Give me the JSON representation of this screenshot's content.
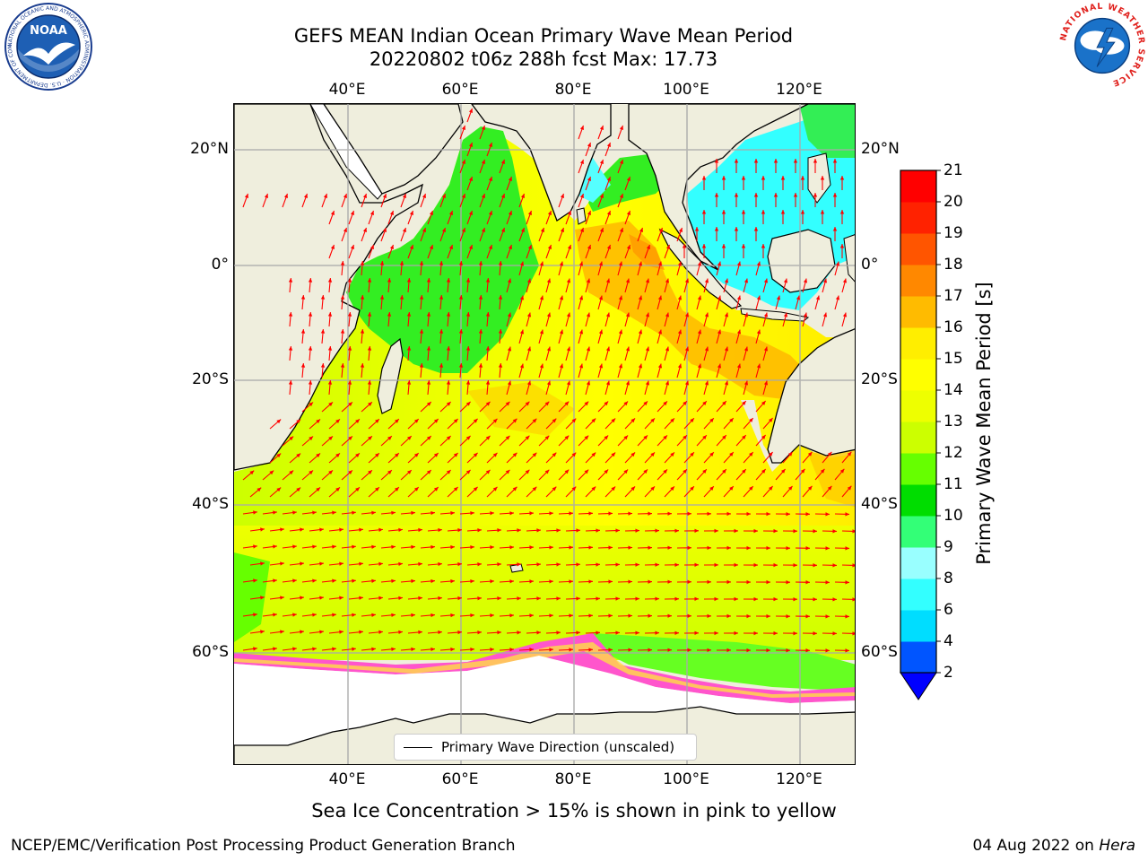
{
  "header": {
    "title_line1": "GEFS MEAN Indian Ocean Primary Wave Mean Period",
    "title_line2": "20220802 t06z 288h fcst   Max: 17.73"
  },
  "logos": {
    "noaa": {
      "icon": "noaa-logo-icon",
      "text": "NOAA",
      "ring_text": "NATIONAL OCEANIC AND ATMOSPHERIC ADMINISTRATION · U.S. DEPARTMENT OF COMMERCE"
    },
    "nws": {
      "icon": "nws-logo-icon",
      "ring_text": "NATIONAL WEATHER SERVICE"
    }
  },
  "map": {
    "lon_labels": [
      "40°E",
      "60°E",
      "80°E",
      "100°E",
      "120°E"
    ],
    "lon_values": [
      40,
      60,
      80,
      100,
      120
    ],
    "lat_labels": [
      "20°N",
      "0°",
      "20°S",
      "40°S",
      "60°S"
    ],
    "lat_values": [
      20,
      0,
      -20,
      -40,
      -60
    ],
    "lon_range": [
      20,
      130
    ],
    "lat_range": [
      -73,
      28
    ],
    "grid": true,
    "arrow_color": "#ff0000",
    "land_color": "#efeedd",
    "ice_free_color": "#ffffff",
    "legend_label": "Primary Wave Direction (unscaled)",
    "legend_position": "bottom-center"
  },
  "colorbar": {
    "label": "Primary Wave Mean Period [s]",
    "ticks": [
      2,
      4,
      6,
      8,
      9,
      10,
      11,
      12,
      13,
      14,
      15,
      16,
      17,
      18,
      19,
      20,
      21
    ],
    "colors": [
      "#0055ff",
      "#00ddff",
      "#33ffff",
      "#99ffff",
      "#33ff77",
      "#00dd00",
      "#66ff00",
      "#ccff00",
      "#eeff00",
      "#ffff00",
      "#ffee00",
      "#ffbb00",
      "#ff8800",
      "#ff5500",
      "#ff2200",
      "#ff0000"
    ],
    "extend_min_color": "#0000ff"
  },
  "notes": {
    "sea_ice": "Sea Ice Concentration > 15% is shown in pink to yellow"
  },
  "footer": {
    "left": "NCEP/EMC/Verification Post Processing Product Generation Branch",
    "date": "04 Aug 2022 on ",
    "machine": "Hera"
  }
}
